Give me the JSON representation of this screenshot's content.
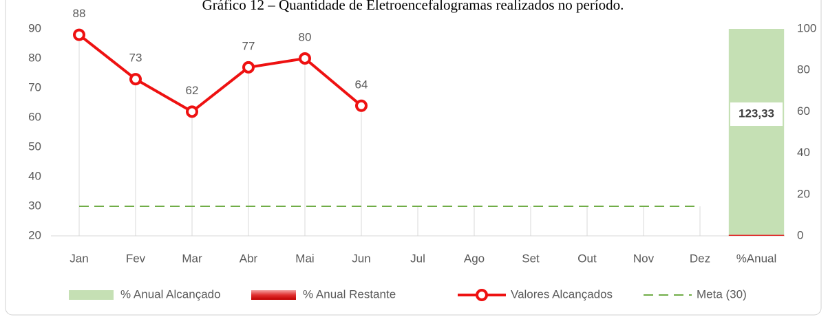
{
  "chart_data": {
    "type": "combo",
    "title": "Gráfico 12 – Quantidade de Eletroencefalogramas realizados no período.",
    "categories": [
      "Jan",
      "Fev",
      "Mar",
      "Abr",
      "Mai",
      "Jun",
      "Jul",
      "Ago",
      "Set",
      "Out",
      "Nov",
      "Dez",
      "%Anual"
    ],
    "series": [
      {
        "name": "% Anual Alcançado",
        "type": "bar",
        "axis": "y2",
        "color": "#c5e0b4",
        "values": [
          null,
          null,
          null,
          null,
          null,
          null,
          null,
          null,
          null,
          null,
          null,
          null,
          123.33
        ],
        "value_labels": [
          null,
          null,
          null,
          null,
          null,
          null,
          null,
          null,
          null,
          null,
          null,
          null,
          "123,33"
        ]
      },
      {
        "name": "% Anual Restante",
        "type": "bar",
        "axis": "y2",
        "color": "#e03030",
        "values": [
          null,
          null,
          null,
          null,
          null,
          null,
          null,
          null,
          null,
          null,
          null,
          null,
          0
        ]
      },
      {
        "name": "Valores Alcançados",
        "type": "line",
        "color": "#ee1111",
        "marker": "circle",
        "values": [
          88,
          73,
          62,
          77,
          80,
          64,
          null,
          null,
          null,
          null,
          null,
          null,
          null
        ]
      },
      {
        "name": "Meta (30)",
        "type": "line",
        "dashed": true,
        "color": "#70ad47",
        "values": [
          30,
          30,
          30,
          30,
          30,
          30,
          30,
          30,
          30,
          30,
          30,
          30,
          null
        ]
      }
    ],
    "ylim": [
      20,
      90
    ],
    "yticks": [
      20,
      30,
      40,
      50,
      60,
      70,
      80,
      90
    ],
    "y2lim": [
      0,
      100
    ],
    "y2ticks": [
      0,
      20,
      40,
      60,
      80,
      100
    ],
    "legend": "bottom"
  }
}
